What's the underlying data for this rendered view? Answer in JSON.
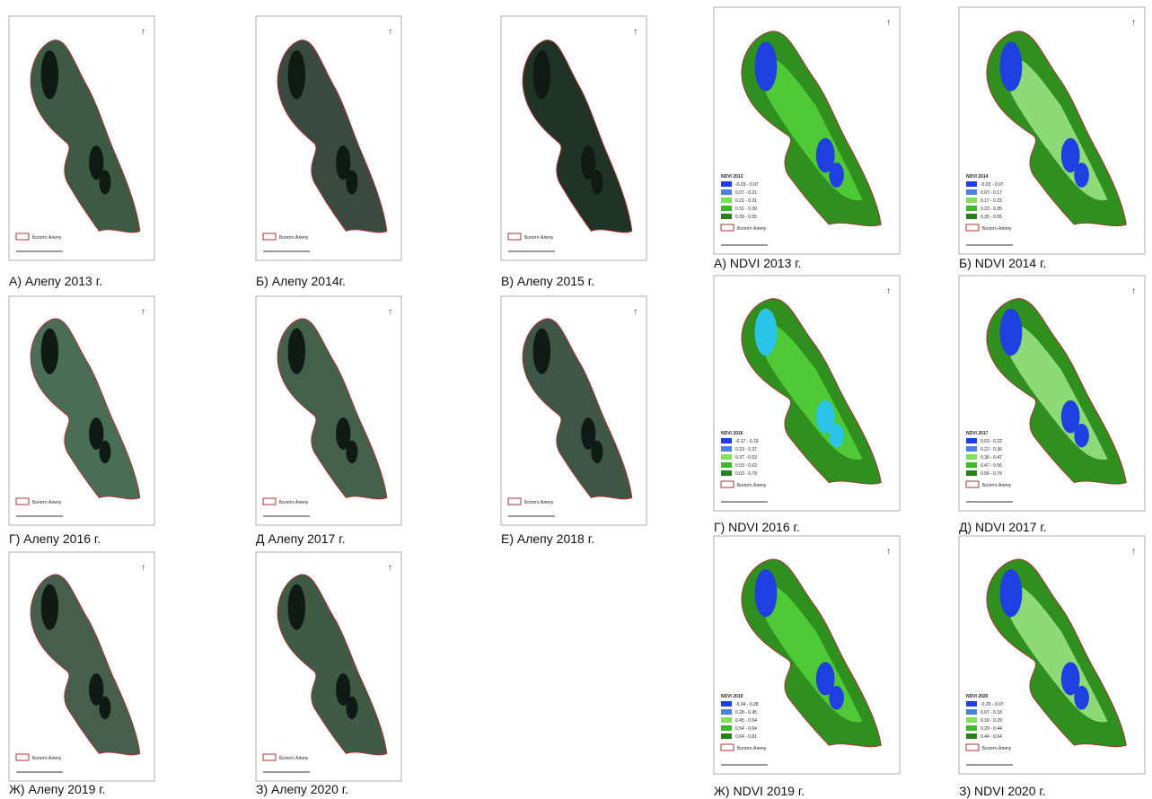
{
  "satellite_panels": [
    {
      "caption": "А) Алепу 2013 г.",
      "legend": "Болото Алепу"
    },
    {
      "caption": "Б) Алепу 2014г.",
      "legend": "Болото Алепу"
    },
    {
      "caption": "В) Алепу 2015 г.",
      "legend": "Болото Алепу"
    },
    {
      "caption": "Г) Алепу 2016 г.",
      "legend": "Болото Алепу"
    },
    {
      "caption": "Д Алепу 2017 г.",
      "legend": "Болото Алепу"
    },
    {
      "caption": "Е) Алепу 2018 г.",
      "legend": "Болото Алепу"
    },
    {
      "caption": "Ж) Алепу 2019 г.",
      "legend": "Болото Алепу"
    },
    {
      "caption": "З) Алепу 2020 г.",
      "legend": "Болото Алепу"
    }
  ],
  "ndvi_panels": [
    {
      "caption": "А) NDVI 2013 г.",
      "legend_title": "NDVI 2013",
      "classes": [
        "-0.03 - 0.07",
        "0.07 - 0.21",
        "0.21 - 0.31",
        "0.31 - 0.39",
        "0.39 - 0.55"
      ],
      "legend": "Болото Алепу"
    },
    {
      "caption": "Б) NDVI 2014 г.",
      "legend_title": "NDVI 2014",
      "classes": [
        "-0.02 - 0.07",
        "0.07 - 0.17",
        "0.17 - 0.23",
        "0.23 - 0.35",
        "0.35 - 0.55"
      ],
      "legend": "Болото Алепу"
    },
    {
      "caption": "Г) NDVI 2016 г.",
      "legend_title": "NDVI 2016",
      "classes": [
        "-0.17 - 0.19",
        "0.19 - 0.37",
        "0.37 - 0.53",
        "0.53 - 0.63",
        "0.63 - 0.79"
      ],
      "legend": "Болото Алепу"
    },
    {
      "caption": "Д) NDVI 2017 г.",
      "legend_title": "NDVI 2017",
      "classes": [
        "0.03 - 0.22",
        "0.22 - 0.36",
        "0.36 - 0.47",
        "0.47 - 0.56",
        "0.56 - 0.79"
      ],
      "legend": "Болото Алепу"
    },
    {
      "caption": "Ж) NDVI 2019 г.",
      "legend_title": "NDVI 2019",
      "classes": [
        "-0.04 - 0.28",
        "0.28 - 0.45",
        "0.45 - 0.54",
        "0.54 - 0.64",
        "0.64 - 0.81"
      ],
      "legend": "Болото Алепу"
    },
    {
      "caption": "З) NDVI 2020 г.",
      "legend_title": "NDVI 2020",
      "classes": [
        "-0.20 - 0.07",
        "0.07 - 0.18",
        "0.18 - 0.29",
        "0.29 - 0.44",
        "0.44 - 0.64"
      ],
      "legend": "Болото Алепу"
    }
  ]
}
